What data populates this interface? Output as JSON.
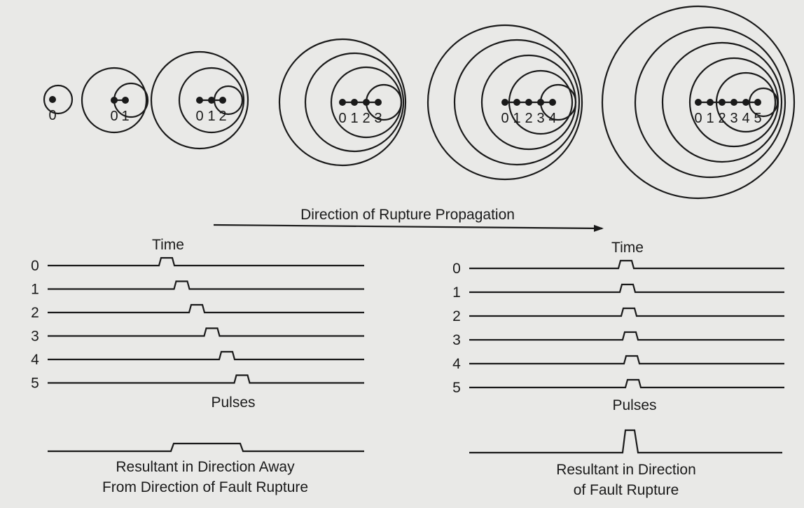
{
  "diagram": {
    "source_digits": [
      "0",
      "1",
      "2",
      "3",
      "4",
      "5"
    ],
    "direction_label": "Direction of Rupture Propagation",
    "left_panel": {
      "time_label": "Time",
      "trace_labels": [
        "0",
        "1",
        "2",
        "3",
        "4",
        "5"
      ],
      "pulses_label": "Pulses",
      "resultant_label_line1": "Resultant in Direction Away",
      "resultant_label_line2": "From Direction of Fault Rupture"
    },
    "right_panel": {
      "time_label": "Time",
      "trace_labels": [
        "0",
        "1",
        "2",
        "3",
        "4",
        "5"
      ],
      "pulses_label": "Pulses",
      "resultant_label_line1": "Resultant in Direction",
      "resultant_label_line2": "of Fault Rupture"
    },
    "colors": {
      "ink": "#1a1a1a",
      "paper": "#e9e9e7"
    }
  }
}
